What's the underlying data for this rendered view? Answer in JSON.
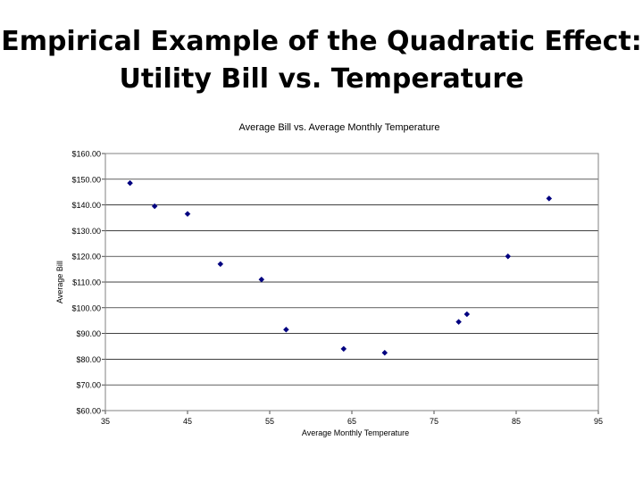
{
  "slide": {
    "title_line1": "Empirical Example of the Quadratic Effect:",
    "title_line2": "Utility Bill vs. Temperature"
  },
  "chart_data": {
    "type": "scatter",
    "title": "Average Bill vs. Average Monthly Temperature",
    "xlabel": "Average Monthly Temperature",
    "ylabel": "Average Bill",
    "xlim": [
      35,
      95
    ],
    "ylim": [
      60,
      160
    ],
    "xticks": [
      35,
      45,
      55,
      65,
      75,
      85,
      95
    ],
    "yticks": [
      60,
      70,
      80,
      90,
      100,
      110,
      120,
      130,
      140,
      150,
      160
    ],
    "ytick_labels": [
      "$60.00",
      "$70.00",
      "$80.00",
      "$90.00",
      "$100.00",
      "$110.00",
      "$120.00",
      "$130.00",
      "$140.00",
      "$150.00",
      "$160.00"
    ],
    "grid": "horizontal",
    "marker_color": "#000080",
    "x": [
      38,
      41,
      45,
      49,
      54,
      57,
      64,
      69,
      78,
      79,
      84,
      89
    ],
    "y": [
      148.5,
      139.5,
      136.5,
      117,
      111,
      91.5,
      84,
      82.5,
      94.5,
      97.5,
      120,
      142.5
    ]
  }
}
